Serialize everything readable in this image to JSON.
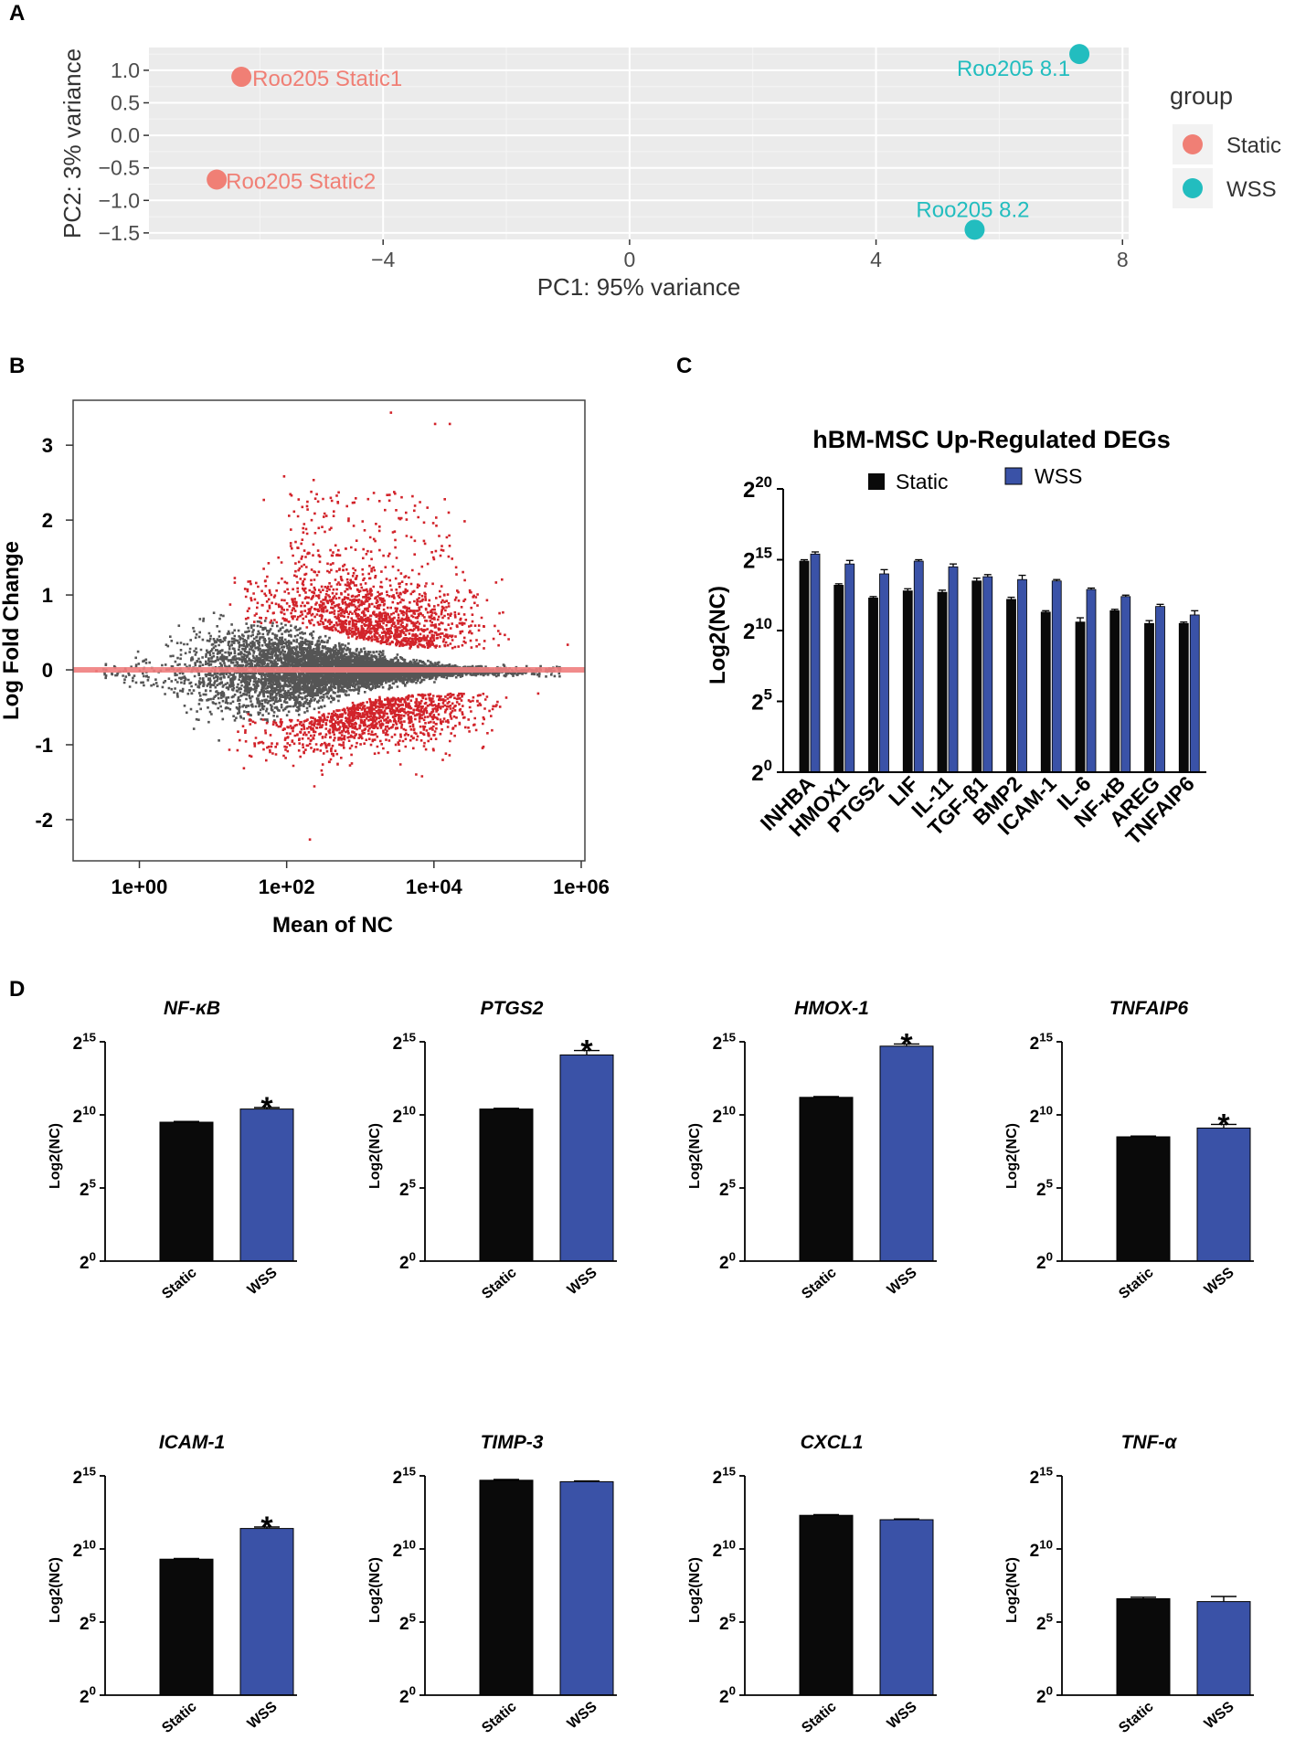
{
  "colors": {
    "static_pca": "#F07F75",
    "wss_pca": "#22BDBF",
    "panel_bg": "#EBEBEB",
    "ma_gray": "#555555",
    "ma_red": "#D2232A",
    "ma_line": "#F07F7F",
    "bar_black": "#0A0A0A",
    "bar_blue": "#3A52A7"
  },
  "panels": {
    "a": "A",
    "b": "B",
    "c": "C",
    "d": "D"
  },
  "chart_data": [
    {
      "id": "A",
      "type": "scatter",
      "xlabel": "PC1: 95% variance",
      "ylabel": "PC2: 3% variance",
      "xlim": [
        -7.8,
        8.1
      ],
      "ylim": [
        -1.6,
        1.35
      ],
      "x_ticks": [
        {
          "v": -4,
          "label": "−4"
        },
        {
          "v": 0,
          "label": "0"
        },
        {
          "v": 4,
          "label": "4"
        },
        {
          "v": 8,
          "label": "8"
        }
      ],
      "y_ticks": [
        {
          "v": 1.0,
          "label": "1.0"
        },
        {
          "v": 0.5,
          "label": "0.5"
        },
        {
          "v": 0.0,
          "label": "0.0"
        },
        {
          "v": -0.5,
          "label": "−0.5"
        },
        {
          "v": -1.0,
          "label": "−1.0"
        },
        {
          "v": -1.5,
          "label": "−1.5"
        }
      ],
      "legend": {
        "title": "group",
        "entries": [
          "Static",
          "WSS"
        ]
      },
      "points": [
        {
          "label": "Roo205 Static1",
          "group": "Static",
          "x": -6.3,
          "y": 0.9
        },
        {
          "label": "Roo205 Static2",
          "group": "Static",
          "x": -6.7,
          "y": -0.68
        },
        {
          "label": "Roo205 8.1",
          "group": "WSS",
          "x": 7.3,
          "y": 1.25
        },
        {
          "label": "Roo205 8.2",
          "group": "WSS",
          "x": 5.6,
          "y": -1.45
        }
      ]
    },
    {
      "id": "B",
      "type": "scatter",
      "xlabel": "Mean of NC",
      "ylabel": "Log Fold Change",
      "x_log10_range": [
        -0.9,
        6.05
      ],
      "ylim": [
        -2.55,
        3.6
      ],
      "x_ticks": [
        {
          "v": 0,
          "label": "1e+00"
        },
        {
          "v": 2,
          "label": "1e+02"
        },
        {
          "v": 4,
          "label": "1e+04"
        },
        {
          "v": 6,
          "label": "1e+06"
        }
      ],
      "y_ticks": [
        {
          "v": 3,
          "label": "3"
        },
        {
          "v": 2,
          "label": "2"
        },
        {
          "v": 1,
          "label": "1"
        },
        {
          "v": 0,
          "label": "0"
        },
        {
          "v": -1,
          "label": "-1"
        },
        {
          "v": -2,
          "label": "-2"
        }
      ],
      "outliers": [
        {
          "x": 3.4,
          "y": 3.45
        },
        {
          "x": 4.0,
          "y": 3.3
        },
        {
          "x": 4.2,
          "y": 3.3
        },
        {
          "x": 1.95,
          "y": 2.6
        },
        {
          "x": 2.35,
          "y": 2.55
        },
        {
          "x": 3.35,
          "y": 2.35
        },
        {
          "x": 4.4,
          "y": 2.0
        },
        {
          "x": 2.3,
          "y": -2.25
        },
        {
          "x": 5.8,
          "y": 0.35
        },
        {
          "x": 5.4,
          "y": -0.3
        },
        {
          "x": -0.6,
          "y": 0.0
        },
        {
          "x": -0.2,
          "y": 0.0
        }
      ]
    },
    {
      "id": "C",
      "type": "bar",
      "title": "hBM-MSC Up-Regulated DEGs",
      "ylabel": "Log2(NC)",
      "ylim": [
        0,
        20
      ],
      "y_ticks": [
        {
          "v": 0,
          "base": "2",
          "exp": "0"
        },
        {
          "v": 5,
          "base": "2",
          "exp": "5"
        },
        {
          "v": 10,
          "base": "2",
          "exp": "10"
        },
        {
          "v": 15,
          "base": "2",
          "exp": "15"
        },
        {
          "v": 20,
          "base": "2",
          "exp": "20"
        }
      ],
      "categories": [
        "INHBA",
        "HMOX1",
        "PTGS2",
        "LIF",
        "IL-11",
        "TGF-β1",
        "BMP2",
        "ICAM-1",
        "IL-6",
        "NF-κB",
        "AREG",
        "TNFAIP6"
      ],
      "series": [
        {
          "name": "Static",
          "values": [
            14.9,
            13.2,
            12.3,
            12.8,
            12.7,
            13.5,
            12.2,
            11.3,
            10.6,
            11.4,
            10.5,
            10.5
          ],
          "errors": [
            0.1,
            0.1,
            0.1,
            0.15,
            0.15,
            0.2,
            0.15,
            0.1,
            0.3,
            0.1,
            0.2,
            0.1
          ]
        },
        {
          "name": "WSS",
          "values": [
            15.4,
            14.7,
            14.0,
            14.9,
            14.5,
            13.8,
            13.6,
            13.5,
            12.9,
            12.4,
            11.7,
            11.1
          ],
          "errors": [
            0.15,
            0.25,
            0.3,
            0.1,
            0.2,
            0.15,
            0.3,
            0.1,
            0.1,
            0.1,
            0.15,
            0.3
          ]
        }
      ]
    },
    {
      "id": "D",
      "type": "bar",
      "ylabel": "Log2(NC)",
      "ylim": [
        0,
        15
      ],
      "y_ticks": [
        {
          "v": 0,
          "base": "2",
          "exp": "0"
        },
        {
          "v": 5,
          "base": "2",
          "exp": "5"
        },
        {
          "v": 10,
          "base": "2",
          "exp": "10"
        },
        {
          "v": 15,
          "base": "2",
          "exp": "15"
        }
      ],
      "categories": [
        "Static",
        "WSS"
      ],
      "significance_marker": "*",
      "panels": [
        {
          "gene": "NF-κB",
          "values": [
            9.5,
            10.4
          ],
          "errors": [
            0.05,
            0.1
          ],
          "significant": true
        },
        {
          "gene": "PTGS2",
          "values": [
            10.4,
            14.1
          ],
          "errors": [
            0.05,
            0.3
          ],
          "significant": true
        },
        {
          "gene": "HMOX-1",
          "values": [
            11.2,
            14.7
          ],
          "errors": [
            0.05,
            0.15
          ],
          "significant": true
        },
        {
          "gene": "TNFAIP6",
          "values": [
            8.5,
            9.1
          ],
          "errors": [
            0.05,
            0.25
          ],
          "significant": true
        },
        {
          "gene": "ICAM-1",
          "values": [
            9.3,
            11.4
          ],
          "errors": [
            0.05,
            0.1
          ],
          "significant": true
        },
        {
          "gene": "TIMP-3",
          "values": [
            14.7,
            14.6
          ],
          "errors": [
            0.05,
            0.05
          ],
          "significant": false
        },
        {
          "gene": "CXCL1",
          "values": [
            12.3,
            12.0
          ],
          "errors": [
            0.05,
            0.05
          ],
          "significant": false
        },
        {
          "gene": "TNF-α",
          "values": [
            6.6,
            6.4
          ],
          "errors": [
            0.1,
            0.35
          ],
          "significant": false
        }
      ]
    }
  ]
}
